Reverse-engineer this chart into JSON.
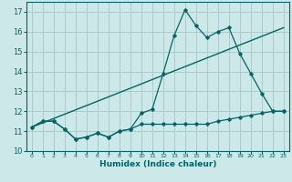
{
  "xlabel": "Humidex (Indice chaleur)",
  "bg_color": "#cce8e8",
  "grid_color": "#aacccc",
  "line_color": "#006666",
  "xlim": [
    -0.5,
    23.5
  ],
  "ylim": [
    10,
    17.5
  ],
  "yticks": [
    10,
    11,
    12,
    13,
    14,
    15,
    16,
    17
  ],
  "xticks": [
    0,
    1,
    2,
    3,
    4,
    5,
    6,
    7,
    8,
    9,
    10,
    11,
    12,
    13,
    14,
    15,
    16,
    17,
    18,
    19,
    20,
    21,
    22,
    23
  ],
  "line1_x": [
    0,
    1,
    2,
    3,
    4,
    5,
    6,
    7,
    8,
    9,
    10,
    11,
    12,
    13,
    14,
    15,
    16,
    17,
    18,
    19,
    20,
    21,
    22,
    23
  ],
  "line1_y": [
    11.2,
    11.5,
    11.5,
    11.1,
    10.6,
    10.7,
    10.9,
    10.7,
    11.0,
    11.1,
    11.35,
    11.35,
    11.35,
    11.35,
    11.35,
    11.35,
    11.35,
    11.5,
    11.6,
    11.7,
    11.8,
    11.9,
    12.0,
    12.0
  ],
  "line2_x": [
    0,
    1,
    2,
    3,
    4,
    5,
    6,
    7,
    8,
    9,
    10,
    11,
    12,
    13,
    14,
    15,
    16,
    17,
    18,
    19,
    20,
    21,
    22,
    23
  ],
  "line2_y": [
    11.2,
    11.5,
    11.5,
    11.1,
    10.6,
    10.7,
    10.9,
    10.7,
    11.0,
    11.1,
    11.9,
    12.1,
    13.9,
    15.8,
    17.1,
    16.3,
    15.7,
    16.0,
    16.2,
    14.9,
    13.9,
    12.9,
    12.0,
    12.0
  ],
  "line3_x": [
    0,
    23
  ],
  "line3_y": [
    11.2,
    16.2
  ]
}
